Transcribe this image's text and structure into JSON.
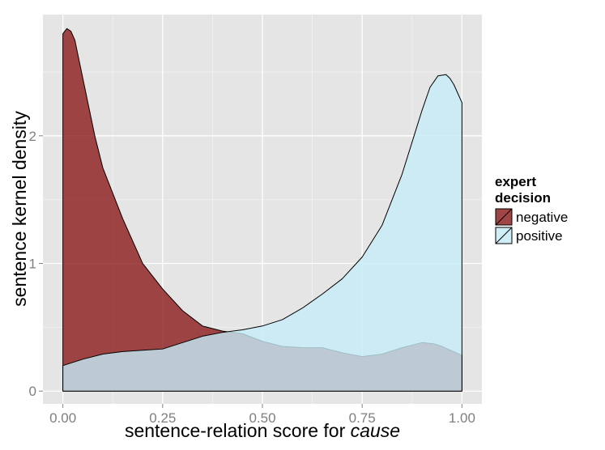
{
  "chart_data": {
    "type": "area",
    "xlabel_prefix": "sentence-relation score for ",
    "xlabel_italic": "cause",
    "ylabel": "sentence kernel density",
    "xlim": [
      -0.05,
      1.05
    ],
    "ylim": [
      -0.1,
      2.95
    ],
    "x_ticks": [
      0,
      0.25,
      0.5,
      0.75,
      1
    ],
    "x_tick_labels": [
      "0.00",
      "0.25",
      "0.50",
      "0.75",
      "1.00"
    ],
    "y_ticks": [
      0,
      1,
      2
    ],
    "y_tick_labels": [
      "0",
      "1",
      "2"
    ],
    "grid": true,
    "panel_background": "#e5e5e5",
    "legend": {
      "title_line1": "expert",
      "title_line2": "decision",
      "position": "right"
    },
    "series": [
      {
        "name": "negative",
        "color": "#8b1a1a",
        "opacity": 0.8,
        "x": [
          0.0,
          0.01,
          0.02,
          0.03,
          0.05,
          0.08,
          0.1,
          0.15,
          0.2,
          0.25,
          0.3,
          0.35,
          0.4,
          0.45,
          0.5,
          0.55,
          0.6,
          0.65,
          0.7,
          0.75,
          0.8,
          0.85,
          0.9,
          0.93,
          0.95,
          1.0
        ],
        "y": [
          2.8,
          2.84,
          2.82,
          2.75,
          2.45,
          2.0,
          1.75,
          1.35,
          1.0,
          0.8,
          0.63,
          0.51,
          0.47,
          0.45,
          0.39,
          0.35,
          0.34,
          0.34,
          0.3,
          0.27,
          0.29,
          0.34,
          0.38,
          0.37,
          0.35,
          0.28
        ]
      },
      {
        "name": "positive",
        "color": "#c6ecf8",
        "opacity": 0.8,
        "x": [
          0.0,
          0.05,
          0.1,
          0.15,
          0.2,
          0.25,
          0.3,
          0.35,
          0.4,
          0.45,
          0.5,
          0.55,
          0.6,
          0.65,
          0.7,
          0.75,
          0.8,
          0.85,
          0.88,
          0.9,
          0.92,
          0.94,
          0.96,
          0.97,
          0.98,
          1.0
        ],
        "y": [
          0.2,
          0.25,
          0.29,
          0.31,
          0.32,
          0.33,
          0.38,
          0.43,
          0.46,
          0.48,
          0.51,
          0.56,
          0.65,
          0.76,
          0.88,
          1.05,
          1.3,
          1.7,
          2.0,
          2.2,
          2.38,
          2.47,
          2.48,
          2.45,
          2.4,
          2.26
        ]
      }
    ]
  }
}
